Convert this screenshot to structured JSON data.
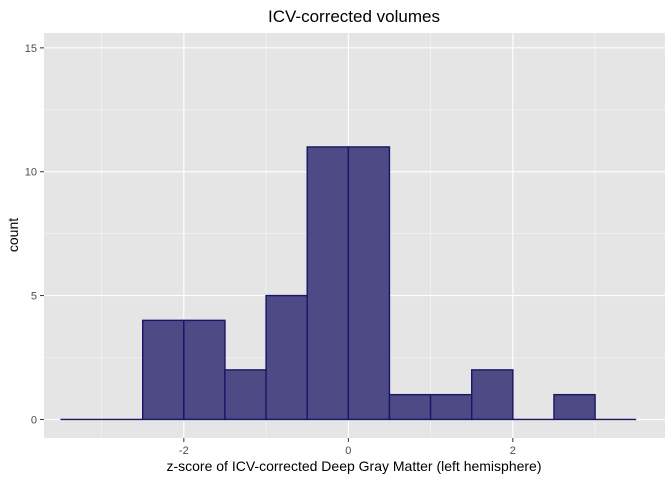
{
  "chart_data": {
    "type": "bar",
    "title": "ICV-corrected volumes",
    "xlabel": "z-score of ICV-corrected Deep Gray Matter (left hemisphere)",
    "ylabel": "count",
    "bins": [
      {
        "x0": -3.5,
        "x1": -3.0,
        "count": 0
      },
      {
        "x0": -3.0,
        "x1": -2.5,
        "count": 0
      },
      {
        "x0": -2.5,
        "x1": -2.0,
        "count": 4
      },
      {
        "x0": -2.0,
        "x1": -1.5,
        "count": 4
      },
      {
        "x0": -1.5,
        "x1": -1.0,
        "count": 2
      },
      {
        "x0": -1.0,
        "x1": -0.5,
        "count": 5
      },
      {
        "x0": -0.5,
        "x1": 0.0,
        "count": 11
      },
      {
        "x0": 0.0,
        "x1": 0.5,
        "count": 11
      },
      {
        "x0": 0.5,
        "x1": 1.0,
        "count": 1
      },
      {
        "x0": 1.0,
        "x1": 1.5,
        "count": 1
      },
      {
        "x0": 1.5,
        "x1": 2.0,
        "count": 2
      },
      {
        "x0": 2.0,
        "x1": 2.5,
        "count": 0
      },
      {
        "x0": 2.5,
        "x1": 3.0,
        "count": 1
      },
      {
        "x0": 3.0,
        "x1": 3.5,
        "count": 0
      }
    ],
    "xlim": [
      -3.7,
      3.85
    ],
    "ylim": [
      -0.75,
      15.6
    ],
    "x_ticks": [
      -2,
      0,
      2
    ],
    "x_tick_labels": [
      "-2",
      "0",
      "2"
    ],
    "y_ticks": [
      0,
      5,
      10,
      15
    ],
    "y_tick_labels": [
      "0",
      "5",
      "10",
      "15"
    ],
    "grid": true,
    "colors": {
      "panel_background": "#e5e5e5",
      "grid_major": "#ffffff",
      "bar_fill": "#4d4a85",
      "bar_stroke": "#1a1666",
      "tick_text": "#4d4d4d",
      "tick_mark": "#333333"
    }
  }
}
